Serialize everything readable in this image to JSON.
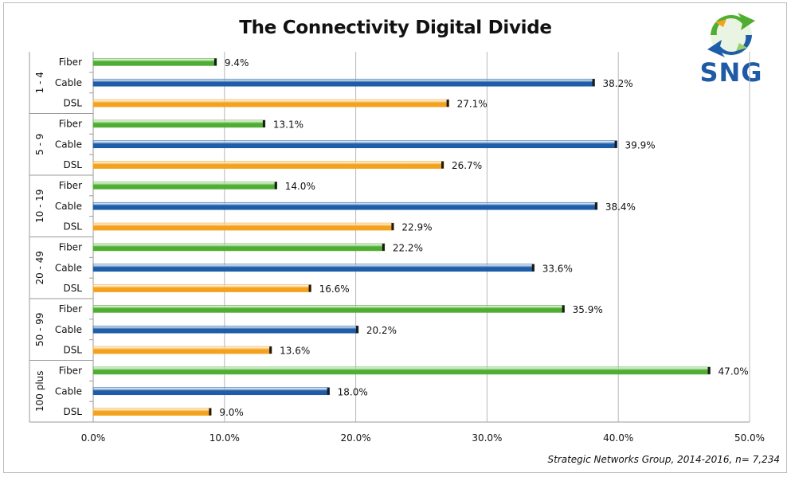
{
  "logo": {
    "text": "SNG",
    "icon": "recycle-arrows-icon"
  },
  "source_note": "Strategic Networks Group, 2014-2016, n= 7,234",
  "colors": {
    "Fiber": "#4fae32",
    "Cable": "#1e5da8",
    "DSL": "#f4a21d"
  },
  "chart_data": {
    "type": "bar",
    "orientation": "horizontal",
    "title": "The Connectivity Digital Divide",
    "xlabel": "",
    "ylabel": "",
    "xlim": [
      0,
      50
    ],
    "x_ticks": [
      "0.0%",
      "10.0%",
      "20.0%",
      "30.0%",
      "40.0%",
      "50.0%"
    ],
    "grid": true,
    "legend": "none",
    "groups": [
      {
        "name": "1 - 4",
        "bars": [
          {
            "category": "Fiber",
            "value": 9.4,
            "label": "9.4%"
          },
          {
            "category": "Cable",
            "value": 38.2,
            "label": "38.2%"
          },
          {
            "category": "DSL",
            "value": 27.1,
            "label": "27.1%"
          }
        ]
      },
      {
        "name": "5 - 9",
        "bars": [
          {
            "category": "Fiber",
            "value": 13.1,
            "label": "13.1%"
          },
          {
            "category": "Cable",
            "value": 39.9,
            "label": "39.9%"
          },
          {
            "category": "DSL",
            "value": 26.7,
            "label": "26.7%"
          }
        ]
      },
      {
        "name": "10 - 19",
        "bars": [
          {
            "category": "Fiber",
            "value": 14.0,
            "label": "14.0%"
          },
          {
            "category": "Cable",
            "value": 38.4,
            "label": "38.4%"
          },
          {
            "category": "DSL",
            "value": 22.9,
            "label": "22.9%"
          }
        ]
      },
      {
        "name": "20 - 49",
        "bars": [
          {
            "category": "Fiber",
            "value": 22.2,
            "label": "22.2%"
          },
          {
            "category": "Cable",
            "value": 33.6,
            "label": "33.6%"
          },
          {
            "category": "DSL",
            "value": 16.6,
            "label": "16.6%"
          }
        ]
      },
      {
        "name": "50 - 99",
        "bars": [
          {
            "category": "Fiber",
            "value": 35.9,
            "label": "35.9%"
          },
          {
            "category": "Cable",
            "value": 20.2,
            "label": "20.2%"
          },
          {
            "category": "DSL",
            "value": 13.6,
            "label": "13.6%"
          }
        ]
      },
      {
        "name": "100 plus",
        "bars": [
          {
            "category": "Fiber",
            "value": 47.0,
            "label": "47.0%"
          },
          {
            "category": "Cable",
            "value": 18.0,
            "label": "18.0%"
          },
          {
            "category": "DSL",
            "value": 9.0,
            "label": "9.0%"
          }
        ]
      }
    ]
  }
}
